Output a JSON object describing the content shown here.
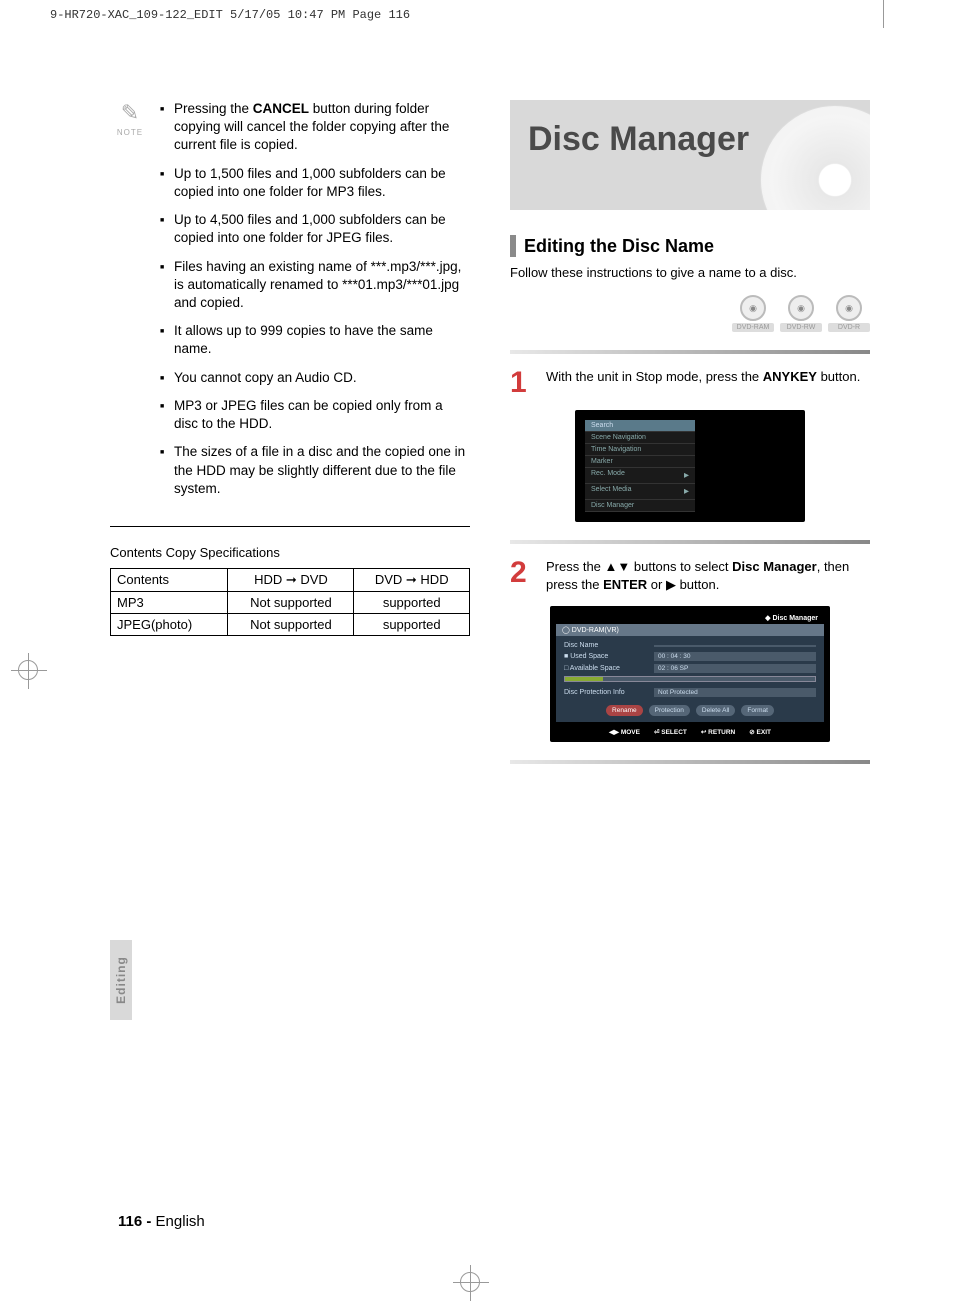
{
  "print_header": "9-HR720-XAC_109-122_EDIT  5/17/05  10:47 PM  Page 116",
  "note": {
    "label": "NOTE",
    "items": [
      {
        "pre": "Pressing the ",
        "bold": "CANCEL",
        "post": " button during folder copying will cancel the folder copying after the current file is copied."
      },
      {
        "text": "Up to 1,500 files and 1,000 subfolders can be copied into one folder for MP3 files."
      },
      {
        "text": "Up to 4,500 files and 1,000 subfolders can be copied into one folder for JPEG files."
      },
      {
        "text": "Files having an existing name of ***.mp3/***.jpg, is automatically renamed to ***01.mp3/***01.jpg and copied."
      },
      {
        "text": "It allows up to 999 copies to have the same name."
      },
      {
        "text": "You cannot copy an Audio CD."
      },
      {
        "text": "MP3 or JPEG files can be copied only from a disc to the HDD."
      },
      {
        "text": "The sizes of a file in a disc and the copied one in the HDD may be slightly different due to the file system."
      }
    ]
  },
  "spec": {
    "title": "Contents Copy Specifications",
    "columns": [
      "Contents",
      "HDD ➞ DVD",
      "DVD ➞ HDD"
    ],
    "rows": [
      [
        "MP3",
        "Not supported",
        "supported"
      ],
      [
        "JPEG(photo)",
        "Not supported",
        "supported"
      ]
    ]
  },
  "disc_manager": {
    "banner_title": "Disc Manager",
    "section_title": "Editing the Disc Name",
    "section_sub": "Follow these instructions to give a name to a disc.",
    "badges": [
      "DVD-RAM",
      "DVD-RW",
      "DVD-R"
    ],
    "step1": {
      "num": "1",
      "pre": "With the unit in Stop mode, press the ",
      "bold": "ANYKEY",
      "post": " button."
    },
    "menu1": [
      "Search",
      "Scene Navigation",
      "Time Navigation",
      "Marker",
      "Rec. Mode",
      "Select Media",
      "Disc Manager"
    ],
    "step2": {
      "num": "2",
      "pre": "Press the ",
      "sym1": "▲▼",
      "mid1": " buttons to select ",
      "bold1": "Disc Manager",
      "mid2": ", then press the ",
      "bold2": "ENTER",
      "mid3": " or ",
      "sym2": "▶",
      "post": " button."
    },
    "screen2": {
      "top": "Disc Manager",
      "header": "DVD-RAM(VR)",
      "rows": [
        {
          "label": "Disc Name",
          "value": ""
        },
        {
          "label": "Used Space",
          "value": "00 : 04 : 30",
          "icon": "■"
        },
        {
          "label": "Available Space",
          "value": "02 : 06 SP",
          "icon": "□"
        }
      ],
      "protection": {
        "label": "Disc Protection Info",
        "value": "Not Protected"
      },
      "buttons": [
        "Rename",
        "Protection",
        "Delete All",
        "Format"
      ],
      "footer": [
        {
          "sym": "◀▶",
          "label": "MOVE"
        },
        {
          "sym": "⏎",
          "label": "SELECT"
        },
        {
          "sym": "↩",
          "label": "RETURN"
        },
        {
          "sym": "⊘",
          "label": "EXIT"
        }
      ]
    }
  },
  "side_tab": "Editing",
  "footer": {
    "page": "116 -",
    "lang": "English"
  }
}
